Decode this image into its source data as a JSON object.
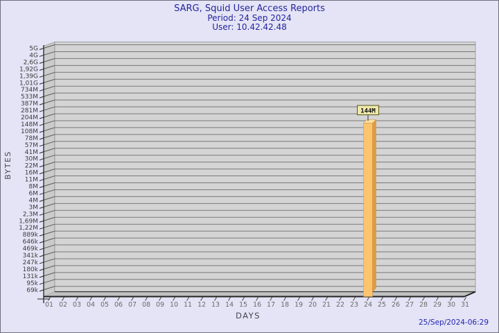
{
  "header": {
    "title": "SARG, Squid User Access Reports",
    "period": "Period: 24 Sep 2024",
    "user": "User: 10.42.42.48"
  },
  "footer": {
    "timestamp": "25/Sep/2024-06:29"
  },
  "chart_data": {
    "type": "bar",
    "title": "SARG, Squid User Access Reports",
    "subtitle_period": "Period: 24 Sep 2024",
    "subtitle_user": "User: 10.42.42.48",
    "xlabel": "DAYS",
    "ylabel": "BYTES",
    "y_scale": "log",
    "y_tick_labels": [
      "5G",
      "4G",
      "2,6G",
      "1,92G",
      "1,39G",
      "1,01G",
      "734M",
      "533M",
      "387M",
      "281M",
      "204M",
      "148M",
      "108M",
      "78M",
      "57M",
      "41M",
      "30M",
      "22M",
      "16M",
      "11M",
      "8M",
      "6M",
      "4M",
      "3M",
      "2,3M",
      "1,69M",
      "1,22M",
      "889k",
      "646k",
      "469k",
      "341k",
      "247k",
      "180k",
      "131k",
      "95k",
      "69k"
    ],
    "categories": [
      "01",
      "02",
      "03",
      "04",
      "05",
      "06",
      "07",
      "08",
      "09",
      "10",
      "11",
      "12",
      "13",
      "14",
      "15",
      "16",
      "17",
      "18",
      "19",
      "20",
      "21",
      "22",
      "23",
      "24",
      "25",
      "26",
      "27",
      "28",
      "29",
      "30",
      "31"
    ],
    "values": [
      null,
      null,
      null,
      null,
      null,
      null,
      null,
      null,
      null,
      null,
      null,
      null,
      null,
      null,
      null,
      null,
      null,
      null,
      null,
      null,
      null,
      null,
      null,
      144000000,
      null,
      null,
      null,
      null,
      null,
      null,
      null
    ],
    "bars": [
      {
        "category": "24",
        "label": "144M",
        "value_bytes": 144000000
      }
    ],
    "legend": "none",
    "grid": "horizontal"
  },
  "colors": {
    "background": "#E4E4F6",
    "plot_bg": "#D4D4D4",
    "wall_bg": "#CBCBCB",
    "floor_bg": "#C2C2C2",
    "grid": "#787878",
    "axis_line": "#222222",
    "axis_text": "#3A3A3A",
    "x_axis_text": "#6A6A6A",
    "axis_title_text": "#44444E",
    "title_text": "#24249B",
    "timestamp_text": "#2424B4",
    "bar_front": "#FCC46E",
    "bar_side": "#DD9B42",
    "bar_top": "#FFE0A3",
    "bar_edge": "#C98E3C",
    "label_box_bg": "#EEE8AA",
    "label_box_border": "#55551F",
    "label_box_text": "#111111"
  }
}
